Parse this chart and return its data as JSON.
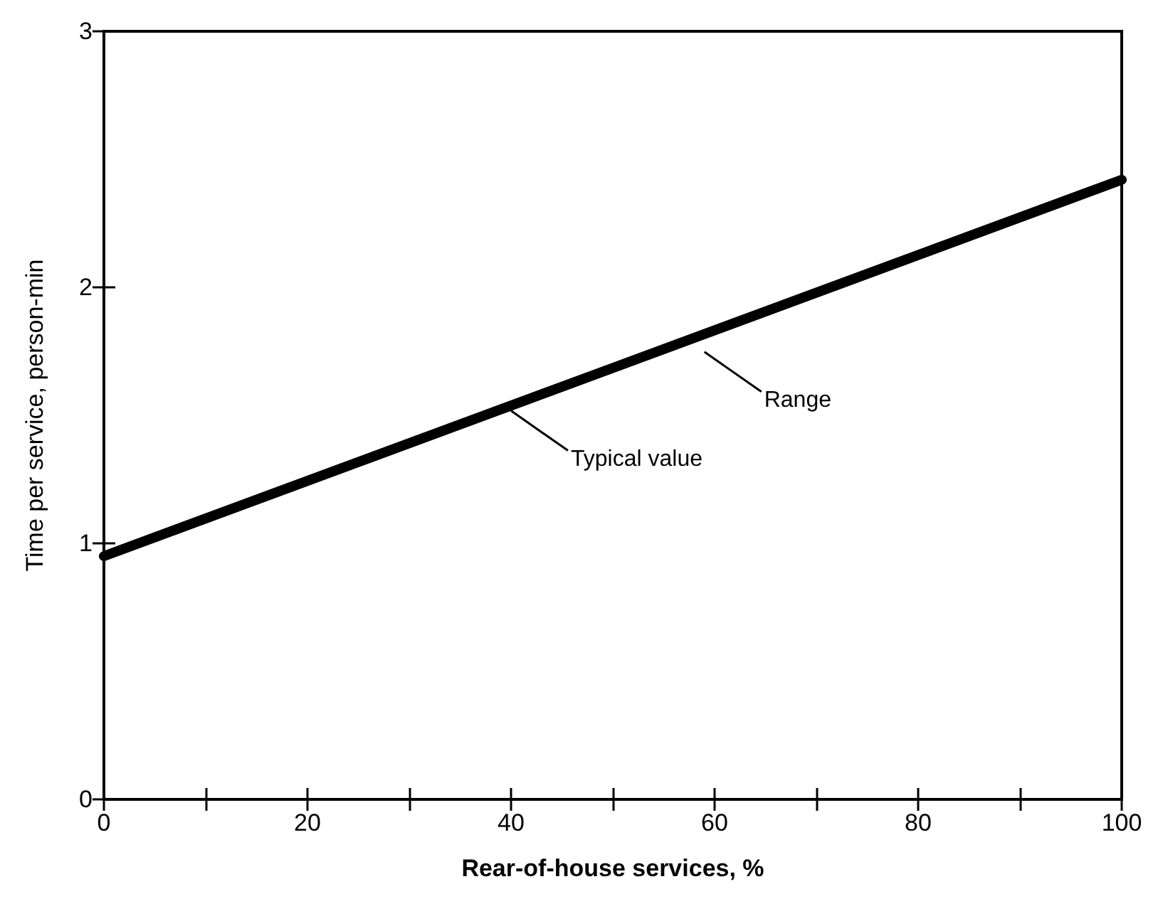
{
  "chart_data": {
    "type": "line",
    "xlabel": "Rear-of-house services, %",
    "ylabel": "Time per service, person-min",
    "x": [
      0,
      100
    ],
    "series": [
      {
        "color": "#000000",
        "values": [
          0.95,
          2.42
        ]
      }
    ],
    "xlim": [
      0,
      100
    ],
    "ylim": [
      0,
      3
    ],
    "xticks": [
      0,
      {
        "value": 10,
        "label": null
      },
      20,
      {
        "value": 30,
        "label": null
      },
      40,
      {
        "value": 50,
        "label": null
      },
      60,
      {
        "value": 70,
        "label": null
      },
      80,
      {
        "value": 90,
        "label": null
      },
      100
    ],
    "yticks": [
      0,
      1,
      2,
      3
    ],
    "annotations": [
      {
        "text": "Typical value",
        "x": 40,
        "y": 1.54
      },
      {
        "text": "Range",
        "x": 59,
        "y": 1.77
      }
    ],
    "grid": false,
    "line_style": "solid"
  }
}
